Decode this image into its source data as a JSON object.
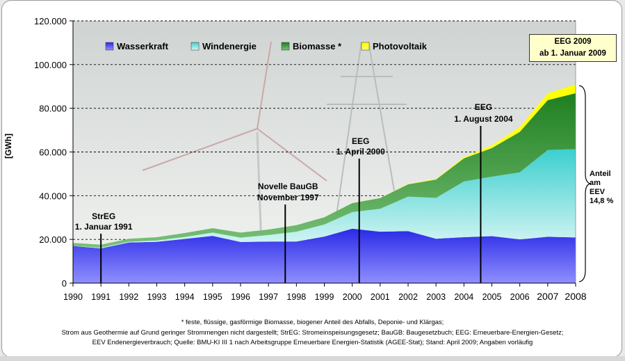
{
  "chart_data": {
    "type": "area",
    "stacked": true,
    "ylabel": "[GWh]",
    "ylim": [
      0,
      120000
    ],
    "yticks": [
      0,
      20000,
      40000,
      60000,
      80000,
      100000,
      120000
    ],
    "ytick_labels": [
      "0",
      "20.000",
      "40.000",
      "60.000",
      "80.000",
      "100.000",
      "120.000"
    ],
    "categories": [
      "1990",
      "1991",
      "1992",
      "1993",
      "1994",
      "1995",
      "1996",
      "1997",
      "1998",
      "1999",
      "2000",
      "2001",
      "2002",
      "2003",
      "2004",
      "2005",
      "2006",
      "2007",
      "2008"
    ],
    "series": [
      {
        "name": "Wasserkraft",
        "color": "#1a1acc",
        "values": [
          17000,
          15900,
          18600,
          18900,
          20200,
          21600,
          18800,
          19000,
          19000,
          21300,
          24900,
          23500,
          23800,
          20300,
          21000,
          21500,
          20000,
          21200,
          20900
        ]
      },
      {
        "name": "Windenergie",
        "color": "#33cccc",
        "values": [
          0,
          300,
          300,
          600,
          900,
          1500,
          2000,
          3000,
          4500,
          5500,
          7600,
          10500,
          15800,
          18700,
          25500,
          27200,
          30700,
          39700,
          40400
        ]
      },
      {
        "name": "Biomasse *",
        "color": "#228822",
        "values": [
          1400,
          1400,
          1400,
          1500,
          1800,
          2000,
          2300,
          2500,
          3000,
          3300,
          4100,
          4900,
          5600,
          8400,
          10600,
          13100,
          18500,
          22800,
          25600
        ]
      },
      {
        "name": "Photovoltaik",
        "color": "#ffff00",
        "values": [
          0,
          0,
          0,
          0,
          0,
          0,
          0,
          0,
          0,
          0,
          60,
          100,
          200,
          300,
          600,
          1300,
          2200,
          3100,
          4000
        ]
      }
    ],
    "annotations": [
      {
        "x": 1991,
        "lines": [
          "StrEG",
          "1. Januar 1991"
        ]
      },
      {
        "x": 1997.6,
        "lines": [
          "Novelle BauGB",
          "November 1997"
        ]
      },
      {
        "x": 2000.25,
        "lines": [
          "EEG",
          "1. April 2000"
        ]
      },
      {
        "x": 2004.6,
        "lines": [
          "EEG",
          "1. August  2004"
        ]
      }
    ],
    "eeg2009": [
      "EEG 2009",
      "ab 1. Januar 2009"
    ],
    "share_label": [
      "Anteil",
      "am",
      "EEV",
      "14,8 %"
    ]
  },
  "footnotes": [
    "* feste, flüssige, gasförmige Biomasse, biogener Anteil des Abfalls, Deponie- und Klärgas;",
    "Strom aus Geothermie auf Grund geringer Strommengen nicht dargestellt; StrEG: Stromeinspeisungsgesetz; BauGB: Baugesetzbuch; EEG: Erneuerbare-Energien-Gesetz;",
    "EEV Endenergieverbrauch; Quelle: BMU-KI III 1 nach Arbeitsgruppe Erneuerbare Energien-Statistik (AGEE-Stat); Stand: April 2009; Angaben vorläufig"
  ]
}
